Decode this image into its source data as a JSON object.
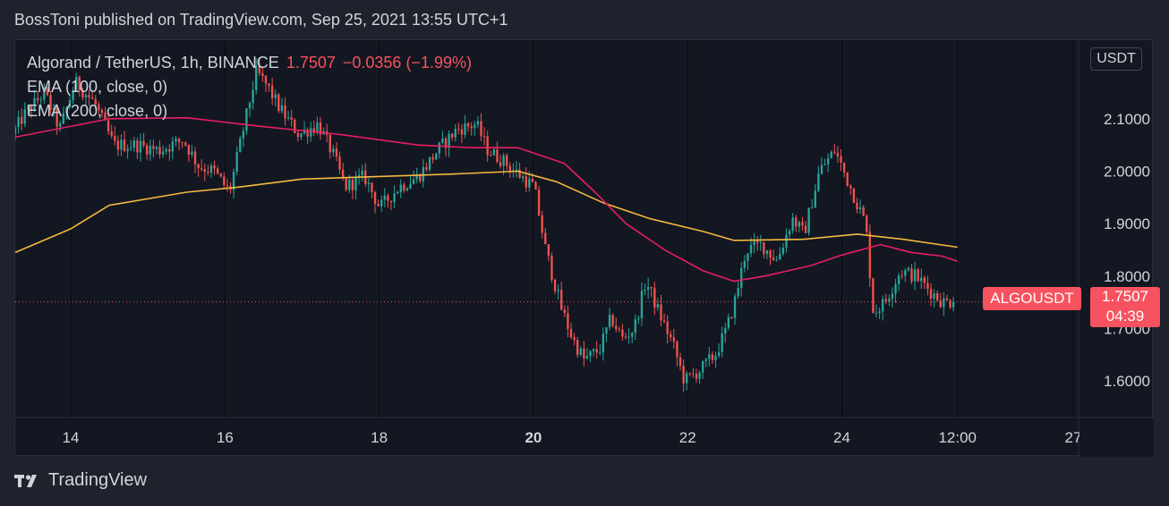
{
  "header": {
    "text": "BossToni published on TradingView.com, Sep 25, 2021 13:55 UTC+1"
  },
  "legend": {
    "symbol": "Algorand / TetherUS, 1h, BINANCE",
    "price": "1.7507",
    "change": "−0.0356 (−1.99%)",
    "ema100": "EMA (100, close, 0)",
    "ema200": "EMA (200, close, 0)"
  },
  "currency": "USDT",
  "last_price": {
    "symbol": "ALGOUSDT",
    "price": "1.7507",
    "countdown": "04:39"
  },
  "footer": {
    "brand": "TradingView"
  },
  "colors": {
    "up": "#26a69a",
    "down": "#ef5350",
    "ema100": "#e91e63",
    "ema200": "#f5b83d",
    "background": "#131722",
    "grid": "#2a2e39"
  },
  "chart_data": {
    "type": "candlestick",
    "y_ticks": [
      "2.1000",
      "2.0000",
      "1.9000",
      "1.8000",
      "1.7000",
      "1.6000"
    ],
    "ylim": [
      1.53,
      2.25
    ],
    "x_ticks": [
      {
        "label": "14",
        "t": 0
      },
      {
        "label": "16",
        "t": 2
      },
      {
        "label": "18",
        "t": 4
      },
      {
        "label": "20",
        "t": 6,
        "bold": true
      },
      {
        "label": "22",
        "t": 8
      },
      {
        "label": "24",
        "t": 10
      },
      {
        "label": "12:00",
        "t": 11.5
      },
      {
        "label": "27",
        "t": 13
      }
    ],
    "x_range": [
      -0.72,
      13.07
    ],
    "price_anchors": [
      [
        -0.72,
        2.07
      ],
      [
        -0.55,
        2.11
      ],
      [
        -0.3,
        2.15
      ],
      [
        -0.1,
        2.08
      ],
      [
        0.1,
        2.17
      ],
      [
        0.35,
        2.13
      ],
      [
        0.6,
        2.05
      ],
      [
        0.9,
        2.05
      ],
      [
        1.2,
        2.04
      ],
      [
        1.5,
        2.06
      ],
      [
        1.7,
        2.01
      ],
      [
        1.9,
        2.0
      ],
      [
        2.1,
        1.96
      ],
      [
        2.25,
        2.06
      ],
      [
        2.45,
        2.19
      ],
      [
        2.6,
        2.16
      ],
      [
        2.75,
        2.12
      ],
      [
        3.0,
        2.07
      ],
      [
        3.25,
        2.09
      ],
      [
        3.45,
        2.03
      ],
      [
        3.6,
        1.97
      ],
      [
        3.85,
        1.99
      ],
      [
        4.05,
        1.93
      ],
      [
        4.3,
        1.97
      ],
      [
        4.55,
        1.99
      ],
      [
        4.8,
        2.04
      ],
      [
        5.05,
        2.08
      ],
      [
        5.3,
        2.09
      ],
      [
        5.45,
        2.04
      ],
      [
        5.65,
        2.02
      ],
      [
        5.8,
        2.0
      ],
      [
        6.05,
        1.97
      ],
      [
        6.2,
        1.85
      ],
      [
        6.4,
        1.74
      ],
      [
        6.55,
        1.68
      ],
      [
        6.7,
        1.64
      ],
      [
        6.9,
        1.66
      ],
      [
        7.05,
        1.72
      ],
      [
        7.2,
        1.68
      ],
      [
        7.35,
        1.7
      ],
      [
        7.5,
        1.79
      ],
      [
        7.7,
        1.72
      ],
      [
        7.85,
        1.67
      ],
      [
        8.0,
        1.6
      ],
      [
        8.2,
        1.62
      ],
      [
        8.4,
        1.65
      ],
      [
        8.55,
        1.7
      ],
      [
        8.65,
        1.75
      ],
      [
        8.8,
        1.85
      ],
      [
        9.0,
        1.86
      ],
      [
        9.2,
        1.83
      ],
      [
        9.4,
        1.91
      ],
      [
        9.55,
        1.88
      ],
      [
        9.75,
        2.0
      ],
      [
        9.95,
        2.04
      ],
      [
        10.15,
        1.97
      ],
      [
        10.35,
        1.9
      ],
      [
        10.45,
        1.73
      ],
      [
        10.6,
        1.75
      ],
      [
        10.8,
        1.81
      ],
      [
        11.0,
        1.8
      ],
      [
        11.2,
        1.77
      ],
      [
        11.35,
        1.75
      ],
      [
        11.47,
        1.7507
      ]
    ],
    "ema100": [
      [
        -0.72,
        2.065
      ],
      [
        0.5,
        2.1
      ],
      [
        1.5,
        2.102
      ],
      [
        2.5,
        2.085
      ],
      [
        3.5,
        2.07
      ],
      [
        4.5,
        2.05
      ],
      [
        5.2,
        2.045
      ],
      [
        5.8,
        2.045
      ],
      [
        6.4,
        2.015
      ],
      [
        6.8,
        1.96
      ],
      [
        7.2,
        1.9
      ],
      [
        7.7,
        1.85
      ],
      [
        8.2,
        1.81
      ],
      [
        8.6,
        1.79
      ],
      [
        9.0,
        1.8
      ],
      [
        9.6,
        1.82
      ],
      [
        10.0,
        1.84
      ],
      [
        10.5,
        1.86
      ],
      [
        10.9,
        1.845
      ],
      [
        11.3,
        1.838
      ],
      [
        11.5,
        1.828
      ]
    ],
    "ema200": [
      [
        -0.72,
        1.845
      ],
      [
        0.0,
        1.89
      ],
      [
        0.5,
        1.935
      ],
      [
        1.5,
        1.96
      ],
      [
        2.2,
        1.97
      ],
      [
        3.0,
        1.985
      ],
      [
        4.0,
        1.99
      ],
      [
        5.0,
        1.995
      ],
      [
        5.8,
        2.0
      ],
      [
        6.3,
        1.98
      ],
      [
        6.9,
        1.94
      ],
      [
        7.5,
        1.91
      ],
      [
        8.2,
        1.885
      ],
      [
        8.6,
        1.868
      ],
      [
        9.5,
        1.87
      ],
      [
        10.2,
        1.88
      ],
      [
        10.8,
        1.87
      ],
      [
        11.5,
        1.855
      ]
    ]
  }
}
